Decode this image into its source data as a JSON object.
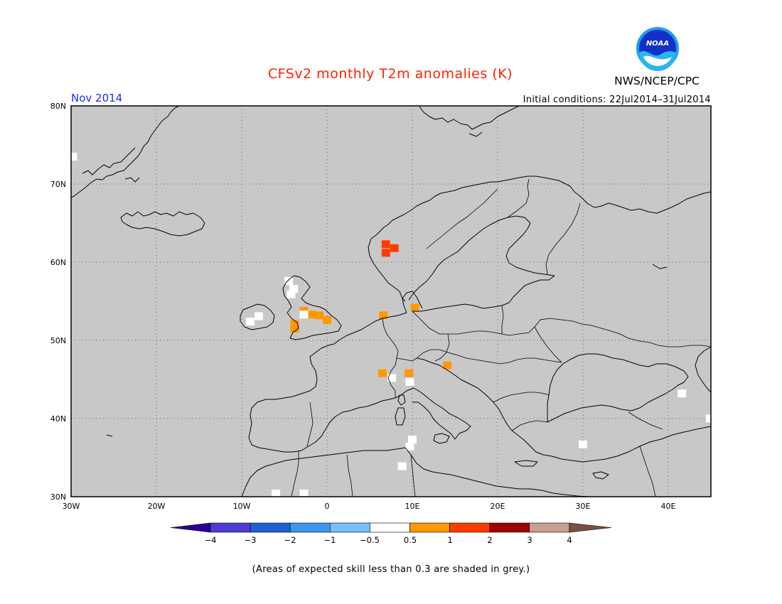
{
  "header": {
    "title": "CFSv2 monthly T2m anomalies (K)",
    "agency": "NWS/NCEP/CPC",
    "logo_text": "NOAA",
    "month": "Nov 2014",
    "initial_conditions": "Initial conditions: 22Jul2014–31Jul2014"
  },
  "map": {
    "region": "Europe",
    "background_color": "#c8c8c8",
    "lon_range": [
      -30,
      45
    ],
    "lat_range": [
      30,
      80
    ],
    "lat_ticks": [
      "80N",
      "70N",
      "60N",
      "50N",
      "40N",
      "30N"
    ],
    "lon_ticks": [
      "30W",
      "20W",
      "10W",
      "0",
      "10E",
      "20E",
      "30E",
      "40E"
    ],
    "anomaly_cells": [
      {
        "lon": 6.9,
        "lat": 62.3,
        "category": "1 to 2"
      },
      {
        "lon": 7.9,
        "lat": 61.8,
        "category": "1 to 2"
      },
      {
        "lon": 6.9,
        "lat": 61.2,
        "category": "1 to 2"
      },
      {
        "lon": -2.7,
        "lat": 53.8,
        "category": "0.5 to 1"
      },
      {
        "lon": -1.8,
        "lat": 53.3,
        "category": "0.5 to 1"
      },
      {
        "lon": -0.9,
        "lat": 53.2,
        "category": "0.5 to 1"
      },
      {
        "lon": 0.0,
        "lat": 52.6,
        "category": "0.5 to 1"
      },
      {
        "lon": -3.8,
        "lat": 52.1,
        "category": "0.5 to 1"
      },
      {
        "lon": -3.8,
        "lat": 51.5,
        "category": "0.5 to 1"
      },
      {
        "lon": 6.6,
        "lat": 53.2,
        "category": "0.5 to 1"
      },
      {
        "lon": 10.3,
        "lat": 54.2,
        "category": "0.5 to 1"
      },
      {
        "lon": 6.5,
        "lat": 45.8,
        "category": "0.5 to 1"
      },
      {
        "lon": 9.6,
        "lat": 45.8,
        "category": "0.5 to 1"
      },
      {
        "lon": 14.1,
        "lat": 46.8,
        "category": "0.5 to 1"
      },
      {
        "lon": -4.5,
        "lat": 57.6,
        "category": "-0.5 to 0.5"
      },
      {
        "lon": -3.9,
        "lat": 56.6,
        "category": "-0.5 to 0.5"
      },
      {
        "lon": -4.2,
        "lat": 55.9,
        "category": "-0.5 to 0.5"
      },
      {
        "lon": -8.0,
        "lat": 53.1,
        "category": "-0.5 to 0.5"
      },
      {
        "lon": -9.0,
        "lat": 52.4,
        "category": "-0.5 to 0.5"
      },
      {
        "lon": -2.7,
        "lat": 53.3,
        "category": "-0.5 to 0.5"
      },
      {
        "lon": 7.6,
        "lat": 45.2,
        "category": "-0.5 to 0.5"
      },
      {
        "lon": 9.7,
        "lat": 44.7,
        "category": "-0.5 to 0.5"
      },
      {
        "lon": 10.0,
        "lat": 37.3,
        "category": "-0.5 to 0.5"
      },
      {
        "lon": 9.7,
        "lat": 36.4,
        "category": "-0.5 to 0.5"
      },
      {
        "lon": 8.8,
        "lat": 33.9,
        "category": "-0.5 to 0.5"
      },
      {
        "lon": -6.0,
        "lat": 30.4,
        "category": "-0.5 to 0.5"
      },
      {
        "lon": -2.7,
        "lat": 30.4,
        "category": "-0.5 to 0.5"
      },
      {
        "lon": 41.6,
        "lat": 43.2,
        "category": "-0.5 to 0.5"
      },
      {
        "lon": 44.9,
        "lat": 40.0,
        "category": "-0.5 to 0.5"
      },
      {
        "lon": -29.8,
        "lat": 73.5,
        "category": "-0.5 to 0.5"
      },
      {
        "lon": 30.0,
        "lat": 36.7,
        "category": "-0.5 to 0.5"
      }
    ]
  },
  "colorbar": {
    "colors": [
      "#2a0096",
      "#4c3cd4",
      "#1e62d2",
      "#3c96f0",
      "#78befa",
      "#ffffff",
      "#ff9900",
      "#ff3c00",
      "#a00000",
      "#c8a090",
      "#7a5040"
    ],
    "tick_labels": [
      "−4",
      "−3",
      "−2",
      "−1",
      "−0.5",
      "0.5",
      "1",
      "2",
      "3",
      "4"
    ]
  },
  "footnote": "(Areas of expected skill less than 0.3 are shaded in grey.)"
}
